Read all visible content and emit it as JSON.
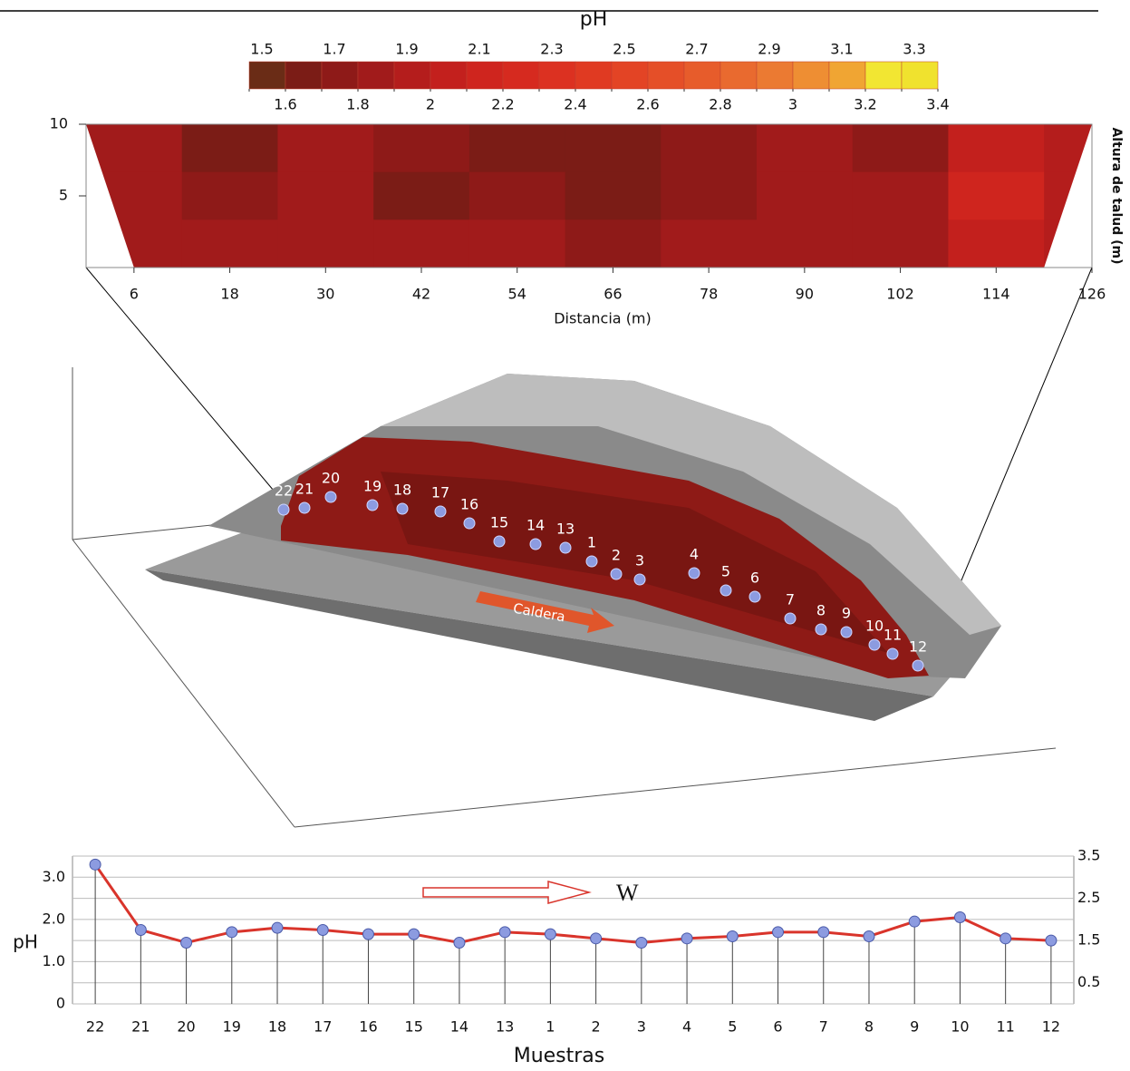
{
  "chart_data": [
    {
      "type": "colorbar",
      "title": "pH",
      "ticks": [
        1.5,
        1.6,
        1.7,
        1.8,
        1.9,
        2,
        2.1,
        2.2,
        2.3,
        2.4,
        2.5,
        2.6,
        2.7,
        2.8,
        2.9,
        3,
        3.1,
        3.2,
        3.3,
        3.4
      ],
      "colors": [
        "#6a2c16",
        "#7b1c16",
        "#8e1a18",
        "#a11b1b",
        "#b41d1c",
        "#c3201d",
        "#cf251e",
        "#d62a1f",
        "#dc3121",
        "#e03a22",
        "#e34425",
        "#e54f28",
        "#e75c2b",
        "#e96a2f",
        "#eb7a32",
        "#ee8e33",
        "#f0a533",
        "#f2e632",
        "#f0e22e"
      ]
    },
    {
      "type": "contour",
      "xlabel": "Distancia (m)",
      "ylabel": "Altura de talud (m)",
      "xlim": [
        0,
        126
      ],
      "ylim": [
        0,
        10
      ],
      "xticks": [
        6,
        18,
        30,
        42,
        54,
        66,
        78,
        90,
        102,
        114,
        126
      ],
      "yticks": [
        5,
        10
      ],
      "x": [
        6,
        18,
        30,
        42,
        54,
        66,
        78,
        90,
        102,
        114,
        126
      ],
      "z": [
        [
          1.8,
          1.6,
          1.8,
          1.7,
          1.6,
          1.6,
          1.7,
          1.8,
          1.7,
          2.0,
          1.9
        ],
        [
          1.8,
          1.7,
          1.8,
          1.6,
          1.7,
          1.6,
          1.7,
          1.8,
          1.8,
          2.1,
          1.9
        ],
        [
          1.8,
          1.8,
          1.8,
          1.8,
          1.8,
          1.7,
          1.8,
          1.8,
          1.8,
          2.0,
          1.9
        ]
      ]
    },
    {
      "type": "line",
      "xlabel": "Muestras",
      "ylabel": "pH",
      "annotation": "W",
      "categories": [
        "22",
        "21",
        "20",
        "19",
        "18",
        "17",
        "16",
        "15",
        "14",
        "13",
        "1",
        "2",
        "3",
        "4",
        "5",
        "6",
        "7",
        "8",
        "9",
        "10",
        "11",
        "12"
      ],
      "values": [
        3.3,
        1.75,
        1.45,
        1.7,
        1.8,
        1.75,
        1.65,
        1.65,
        1.45,
        1.7,
        1.65,
        1.55,
        1.45,
        1.55,
        1.6,
        1.7,
        1.7,
        1.6,
        1.95,
        2.05,
        1.55,
        1.5
      ],
      "color": "#d9342b",
      "marker_color": "#8c9be0",
      "ylim": [
        0,
        3.5
      ],
      "yticks": [
        0,
        {
          "value": 1,
          "label": "1.0"
        },
        {
          "value": 2,
          "label": "2.0"
        },
        {
          "value": 3,
          "label": "3.0"
        }
      ],
      "y2lim": [
        0,
        3.5
      ],
      "y2ticks": [
        0.5,
        1.5,
        2.5,
        3.5
      ],
      "grid": true
    }
  ],
  "diagram": {
    "annotation": "Caldera",
    "samples": [
      "22",
      "21",
      "20",
      "19",
      "18",
      "17",
      "16",
      "15",
      "14",
      "13",
      "1",
      "2",
      "3",
      "4",
      "5",
      "6",
      "7",
      "8",
      "9",
      "10",
      "11",
      "12"
    ]
  }
}
